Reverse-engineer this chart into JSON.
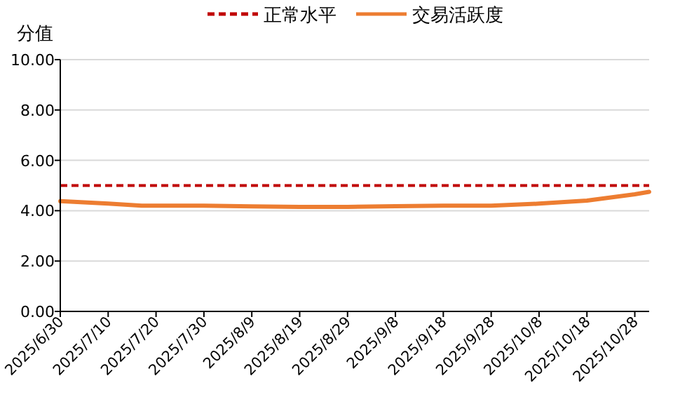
{
  "chart_data": {
    "type": "line",
    "ylabel": "分值",
    "x": [
      "2025-06-30",
      "2025-07-10",
      "2025-07-17",
      "2025-07-30",
      "2025-08-09",
      "2025-08-19",
      "2025-08-29",
      "2025-09-08",
      "2025-09-18",
      "2025-09-28",
      "2025-10-08",
      "2025-10-18",
      "2025-10-28",
      "2025-10-31"
    ],
    "series": [
      {
        "name": "交易活跃度",
        "color": "#ed7d31",
        "values": [
          4.38,
          4.28,
          4.2,
          4.2,
          4.17,
          4.15,
          4.15,
          4.18,
          4.2,
          4.2,
          4.28,
          4.4,
          4.65,
          4.75
        ]
      }
    ],
    "ref_lines": [
      {
        "axis": "y",
        "value": 5,
        "label": "正常水平",
        "color": "#c00000",
        "line_style": "dashed"
      }
    ],
    "xlim": [
      "2025-06-30",
      "2025-10-31"
    ],
    "xticks": [
      {
        "value": "2025-06-30",
        "label": "2025/6/30"
      },
      {
        "value": "2025-07-10",
        "label": "2025/7/10"
      },
      {
        "value": "2025-07-20",
        "label": "2025/7/20"
      },
      {
        "value": "2025-07-30",
        "label": "2025/7/30"
      },
      {
        "value": "2025-08-09",
        "label": "2025/8/9"
      },
      {
        "value": "2025-08-19",
        "label": "2025/8/19"
      },
      {
        "value": "2025-08-29",
        "label": "2025/8/29"
      },
      {
        "value": "2025-09-08",
        "label": "2025/9/8"
      },
      {
        "value": "2025-09-18",
        "label": "2025/9/18"
      },
      {
        "value": "2025-09-28",
        "label": "2025/9/28"
      },
      {
        "value": "2025-10-08",
        "label": "2025/10/8"
      },
      {
        "value": "2025-10-18",
        "label": "2025/10/18"
      },
      {
        "value": "2025-10-28",
        "label": "2025/10/28"
      }
    ],
    "ylim": [
      0,
      10
    ],
    "yticks": [
      {
        "value": 0,
        "label": "0.00"
      },
      {
        "value": 2,
        "label": "2.00"
      },
      {
        "value": 4,
        "label": "4.00"
      },
      {
        "value": 6,
        "label": "6.00"
      },
      {
        "value": 8,
        "label": "8.00"
      },
      {
        "value": 10,
        "label": "10.00"
      }
    ],
    "grid": "y",
    "legend": "top",
    "marker": "none",
    "line_style": "solid"
  }
}
